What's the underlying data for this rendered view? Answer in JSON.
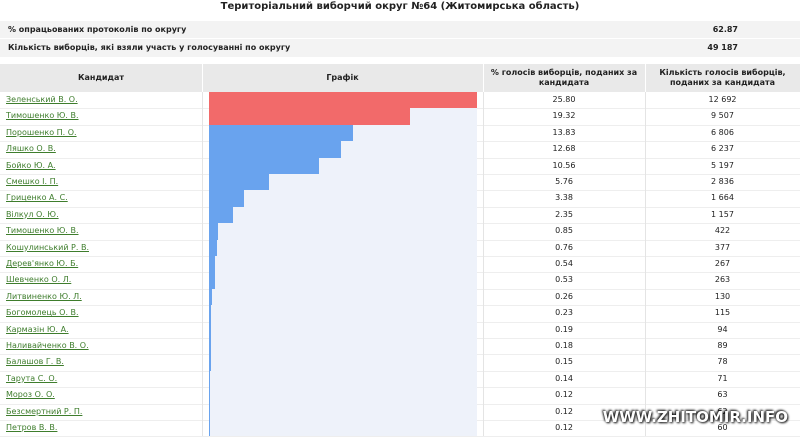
{
  "header": {
    "title": "Територіальний виборчий округ №64 (Житомирська область)"
  },
  "summary": [
    {
      "label": "% опрацьованих протоколів по округу",
      "value": "62.87"
    },
    {
      "label": "Кількість виборців, які взяли участь у голосуванні по округу",
      "value": "49 187"
    }
  ],
  "table": {
    "columns": [
      "Кандидат",
      "Графік",
      "% голосів виборців, поданих за кандидата",
      "Кількість голосів виборців, поданих за кандидата"
    ],
    "rows": [
      {
        "name": "Зеленський В. О.",
        "percent": {
          "value": 25.8,
          "label": "25.80"
        },
        "votes": "12 692",
        "color": "#f26a6a"
      },
      {
        "name": "Тимошенко Ю. В.",
        "percent": {
          "value": 19.32,
          "label": "19.32"
        },
        "votes": "9 507",
        "color": "#f26a6a"
      },
      {
        "name": "Порошенко П. О.",
        "percent": {
          "value": 13.83,
          "label": "13.83"
        },
        "votes": "6 806",
        "color": "#69a3ee"
      },
      {
        "name": "Ляшко О. В.",
        "percent": {
          "value": 12.68,
          "label": "12.68"
        },
        "votes": "6 237",
        "color": "#69a3ee"
      },
      {
        "name": "Бойко Ю. А.",
        "percent": {
          "value": 10.56,
          "label": "10.56"
        },
        "votes": "5 197",
        "color": "#69a3ee"
      },
      {
        "name": "Смешко І. П.",
        "percent": {
          "value": 5.76,
          "label": "5.76"
        },
        "votes": "2 836",
        "color": "#69a3ee"
      },
      {
        "name": "Гриценко А. С.",
        "percent": {
          "value": 3.38,
          "label": "3.38"
        },
        "votes": "1 664",
        "color": "#69a3ee"
      },
      {
        "name": "Вілкул О. Ю.",
        "percent": {
          "value": 2.35,
          "label": "2.35"
        },
        "votes": "1 157",
        "color": "#69a3ee"
      },
      {
        "name": "Тимошенко Ю. В.",
        "percent": {
          "value": 0.85,
          "label": "0.85"
        },
        "votes": "422",
        "color": "#69a3ee"
      },
      {
        "name": "Кошулинський Р. В.",
        "percent": {
          "value": 0.76,
          "label": "0.76"
        },
        "votes": "377",
        "color": "#69a3ee"
      },
      {
        "name": "Дерев'янко Ю. Б.",
        "percent": {
          "value": 0.54,
          "label": "0.54"
        },
        "votes": "267",
        "color": "#69a3ee"
      },
      {
        "name": "Шевченко О. Л.",
        "percent": {
          "value": 0.53,
          "label": "0.53"
        },
        "votes": "263",
        "color": "#69a3ee"
      },
      {
        "name": "Литвиненко Ю. Л.",
        "percent": {
          "value": 0.26,
          "label": "0.26"
        },
        "votes": "130",
        "color": "#69a3ee"
      },
      {
        "name": "Богомолець О. В.",
        "percent": {
          "value": 0.23,
          "label": "0.23"
        },
        "votes": "115",
        "color": "#69a3ee"
      },
      {
        "name": "Кармазін Ю. А.",
        "percent": {
          "value": 0.19,
          "label": "0.19"
        },
        "votes": "94",
        "color": "#69a3ee"
      },
      {
        "name": "Наливайченко В. О.",
        "percent": {
          "value": 0.18,
          "label": "0.18"
        },
        "votes": "89",
        "color": "#69a3ee"
      },
      {
        "name": "Балашов Г. В.",
        "percent": {
          "value": 0.15,
          "label": "0.15"
        },
        "votes": "78",
        "color": "#69a3ee"
      },
      {
        "name": "Тарута С. О.",
        "percent": {
          "value": 0.14,
          "label": "0.14"
        },
        "votes": "71",
        "color": "#69a3ee"
      },
      {
        "name": "Мороз О. О.",
        "percent": {
          "value": 0.12,
          "label": "0.12"
        },
        "votes": "63",
        "color": "#69a3ee"
      },
      {
        "name": "Безсмертний Р. П.",
        "percent": {
          "value": 0.12,
          "label": "0.12"
        },
        "votes": "62",
        "color": "#69a3ee"
      },
      {
        "name": "Петров В. В.",
        "percent": {
          "value": 0.12,
          "label": "0.12"
        },
        "votes": "60",
        "color": "#69a3ee"
      }
    ]
  },
  "watermark": "WWW.ZHITOMIR.INFO"
}
